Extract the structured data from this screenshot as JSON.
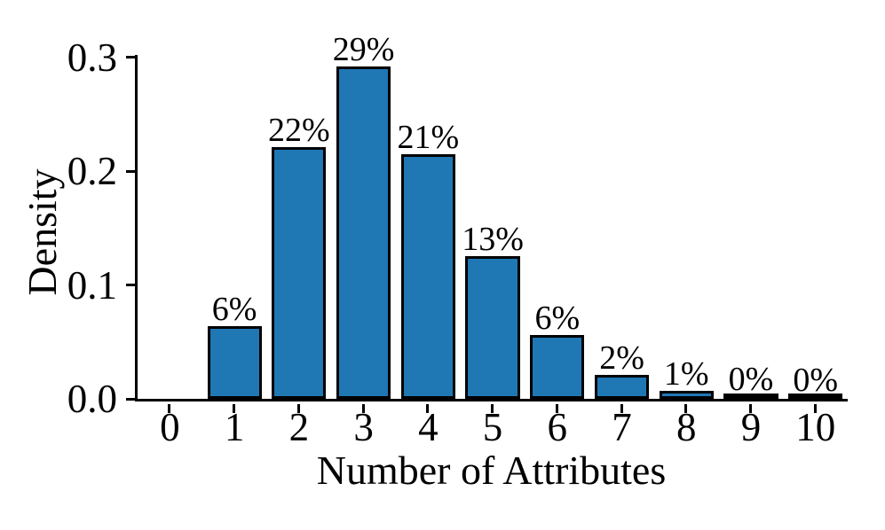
{
  "chart_data": {
    "type": "bar",
    "title": "",
    "xlabel": "Number of Attributes",
    "ylabel": "Density",
    "categories": [
      "0",
      "1",
      "2",
      "3",
      "4",
      "5",
      "6",
      "7",
      "8",
      "9",
      "10"
    ],
    "values": [
      0.0,
      0.064,
      0.221,
      0.292,
      0.215,
      0.125,
      0.056,
      0.021,
      0.007,
      0.002,
      0.001
    ],
    "bar_labels": [
      "",
      "6%",
      "22%",
      "29%",
      "21%",
      "13%",
      "6%",
      "2%",
      "1%",
      "0%",
      "0%"
    ],
    "ytick_labels": [
      "0.0",
      "0.1",
      "0.2",
      "0.3"
    ],
    "ytick_values": [
      0.0,
      0.1,
      0.2,
      0.3
    ],
    "ylim": [
      0.0,
      0.302
    ],
    "grid": false,
    "legend": null,
    "colors": {
      "bar_fill": "#1f77b4",
      "bar_edge": "#000000",
      "axis": "#000000",
      "text": "#000000",
      "background": "#ffffff"
    }
  }
}
